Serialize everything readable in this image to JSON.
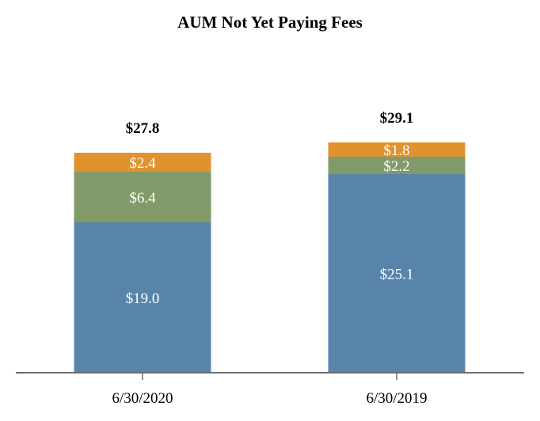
{
  "chart_data": {
    "type": "bar",
    "stacked": true,
    "title": "AUM Not Yet Paying Fees",
    "categories": [
      "6/30/2020",
      "6/30/2019"
    ],
    "series": [
      {
        "values": [
          19.0,
          25.1
        ],
        "labels": [
          "$19.0",
          "$25.1"
        ],
        "color": "#5884a9"
      },
      {
        "values": [
          6.4,
          2.2
        ],
        "labels": [
          "$6.4",
          "$2.2"
        ],
        "color": "#819a69"
      },
      {
        "values": [
          2.4,
          1.8
        ],
        "labels": [
          "$2.4",
          "$1.8"
        ],
        "color": "#e0922e"
      }
    ],
    "totals": [
      "$27.8",
      "$29.1"
    ],
    "ylim": [
      0,
      40
    ],
    "grid": false,
    "legend": "none"
  }
}
